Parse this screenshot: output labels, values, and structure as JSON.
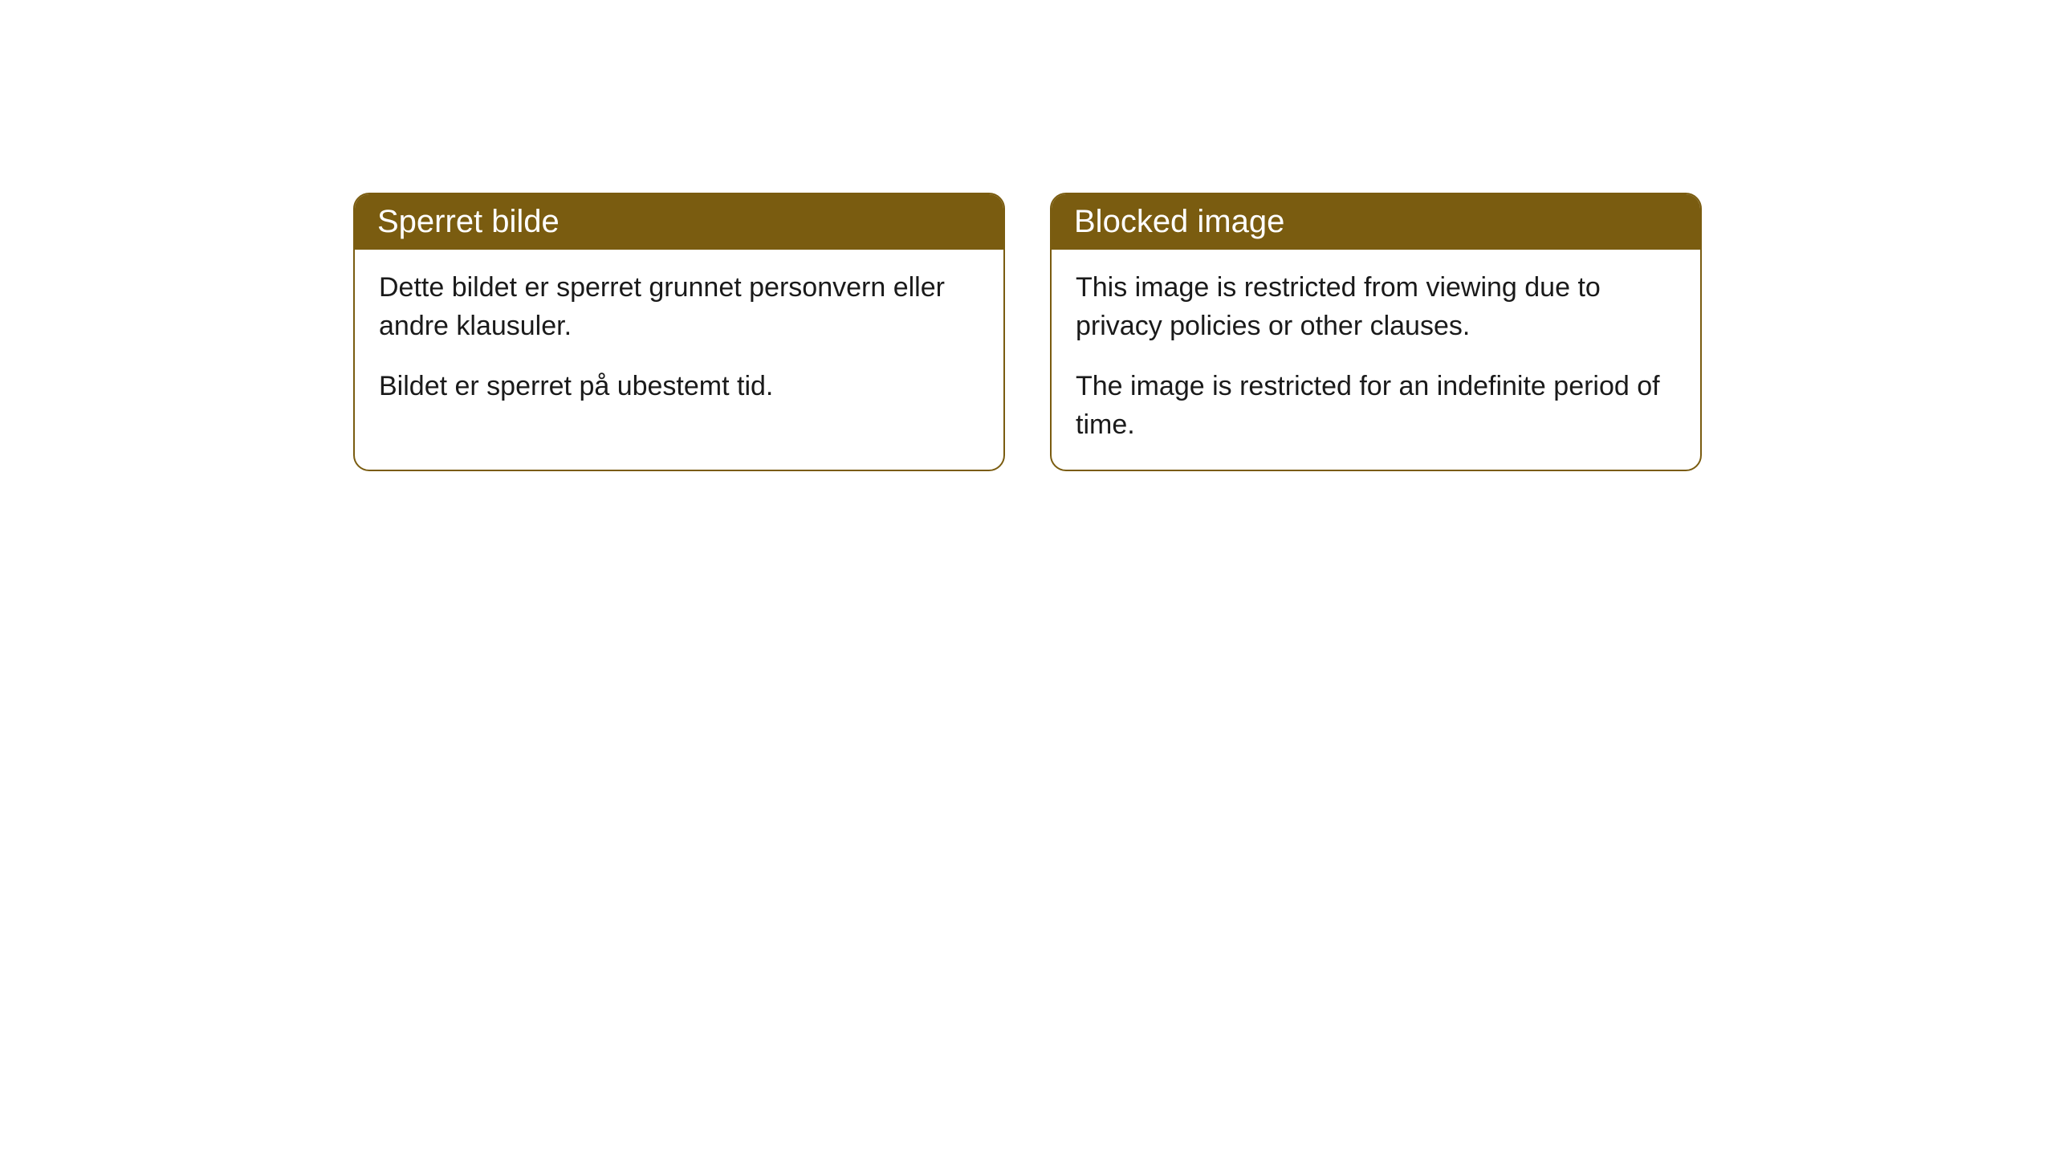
{
  "cards": [
    {
      "title": "Sperret bilde",
      "paragraph1": "Dette bildet er sperret grunnet personvern eller andre klausuler.",
      "paragraph2": "Bildet er sperret på ubestemt tid."
    },
    {
      "title": "Blocked image",
      "paragraph1": "This image is restricted from viewing due to privacy policies or other clauses.",
      "paragraph2": "The image is restricted for an indefinite period of time."
    }
  ],
  "styling": {
    "header_background": "#7a5c10",
    "header_text_color": "#ffffff",
    "border_color": "#7a5c10",
    "body_background": "#ffffff",
    "body_text_color": "#1a1a1a",
    "border_radius": 20,
    "header_fontsize": 40,
    "body_fontsize": 34
  }
}
